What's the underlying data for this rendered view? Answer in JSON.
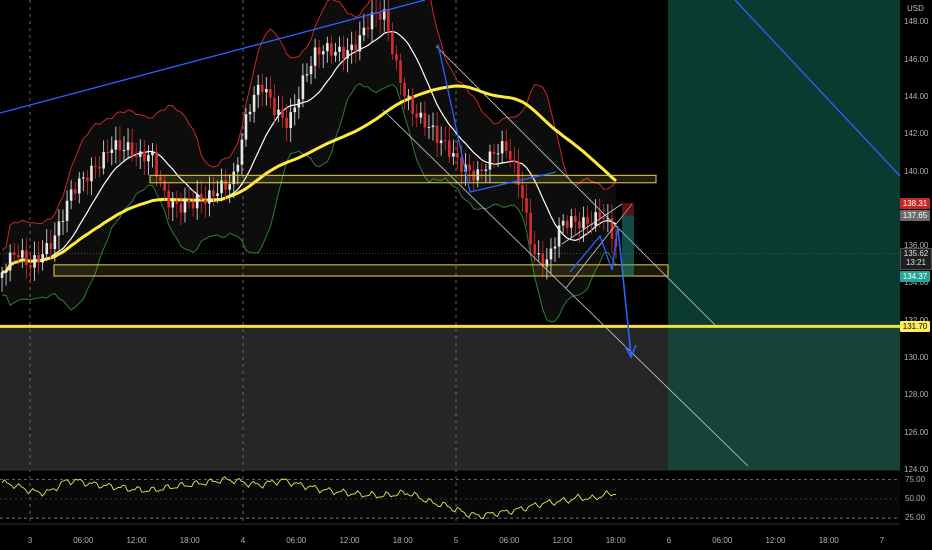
{
  "currency": "USD",
  "price_axis": {
    "ticks": [
      {
        "label": "148.00",
        "value": 148
      },
      {
        "label": "146.00",
        "value": 146
      },
      {
        "label": "144.00",
        "value": 144
      },
      {
        "label": "142.00",
        "value": 142
      },
      {
        "label": "140.00",
        "value": 140
      },
      {
        "label": "136.00",
        "value": 136
      },
      {
        "label": "134.00",
        "value": 134
      },
      {
        "label": "132.00",
        "value": 132
      },
      {
        "label": "130.00",
        "value": 130
      },
      {
        "label": "128.00",
        "value": 128
      },
      {
        "label": "126.00",
        "value": 126
      },
      {
        "label": "124.00",
        "value": 124
      }
    ]
  },
  "badges": {
    "stop_loss": {
      "text": "138.31",
      "value": 138.31,
      "color": "#c62828"
    },
    "entry": {
      "text": "137.65",
      "value": 137.65,
      "color": "#6b6b6b"
    },
    "last_price": {
      "text": "135.62",
      "value": 135.62,
      "countdown": "13:21"
    },
    "take_profit": {
      "text": "134.37",
      "value": 134.37,
      "color": "#26a69a"
    },
    "support": {
      "text": "131.70",
      "value": 131.7,
      "color": "#ffee58"
    }
  },
  "time_axis": {
    "ticks": [
      "3",
      "06:00",
      "12:00",
      "18:00",
      "4",
      "06:00",
      "12:00",
      "18:00",
      "5",
      "06:00",
      "12:00",
      "18:00",
      "6",
      "06:00",
      "12:00",
      "18:00",
      "7"
    ]
  },
  "rsi_axis": {
    "ticks": [
      {
        "label": "75.00",
        "value": 75
      },
      {
        "label": "50.00",
        "value": 50
      },
      {
        "label": "25.00",
        "value": 25
      }
    ]
  },
  "colors": {
    "candle_up": "#e8e8e8",
    "candle_down": "#d32f2f",
    "bb_upper": "#c62828",
    "bb_lower": "#2e7d32",
    "ma_fast": "#ffffff",
    "ma_slow": "#ffeb3b",
    "trend_line": "#2962ff",
    "channel": "#cccccc",
    "rsi_line": "#e6e65c",
    "profit_zone": "#0a3a30",
    "loss_zone": "#262626"
  },
  "chart_data": {
    "type": "candlestick",
    "price_range": [
      124,
      149.2
    ],
    "rsi_range": [
      20,
      85
    ],
    "key_levels": [
      131.7,
      134.37,
      137.65,
      138.31
    ],
    "zones": [
      {
        "from": 139.4,
        "to": 139.8
      },
      {
        "from": 134.4,
        "to": 135.0
      }
    ],
    "close_path": [
      134.6,
      135.2,
      134.8,
      136.1,
      137.0,
      138.4,
      139.2,
      140.6,
      141.9,
      141.2,
      140.2,
      140.8,
      139.1,
      138.3,
      137.9,
      138.2,
      139.5,
      140.1,
      143.0,
      144.2,
      143.4,
      143.1,
      144.8,
      145.9,
      146.3,
      146.8,
      147.2,
      147.9,
      148.0,
      145.5,
      143.9,
      142.6,
      141.2,
      140.8,
      140.6,
      140.1,
      140.6,
      140.9,
      139.5,
      136.0,
      135.0,
      136.7,
      137.3,
      137.8,
      138.0,
      135.6
    ],
    "rsi": [
      71,
      68,
      62,
      58,
      60,
      72,
      74,
      70,
      68,
      66,
      64,
      62,
      61,
      63,
      66,
      68,
      70,
      72,
      75,
      74,
      70,
      68,
      72,
      74,
      69,
      66,
      62,
      60,
      58,
      56,
      55,
      54,
      56,
      58,
      52,
      45,
      42,
      36,
      30,
      28,
      31,
      33,
      36,
      40,
      44,
      46,
      48,
      52,
      50,
      55,
      58
    ]
  }
}
